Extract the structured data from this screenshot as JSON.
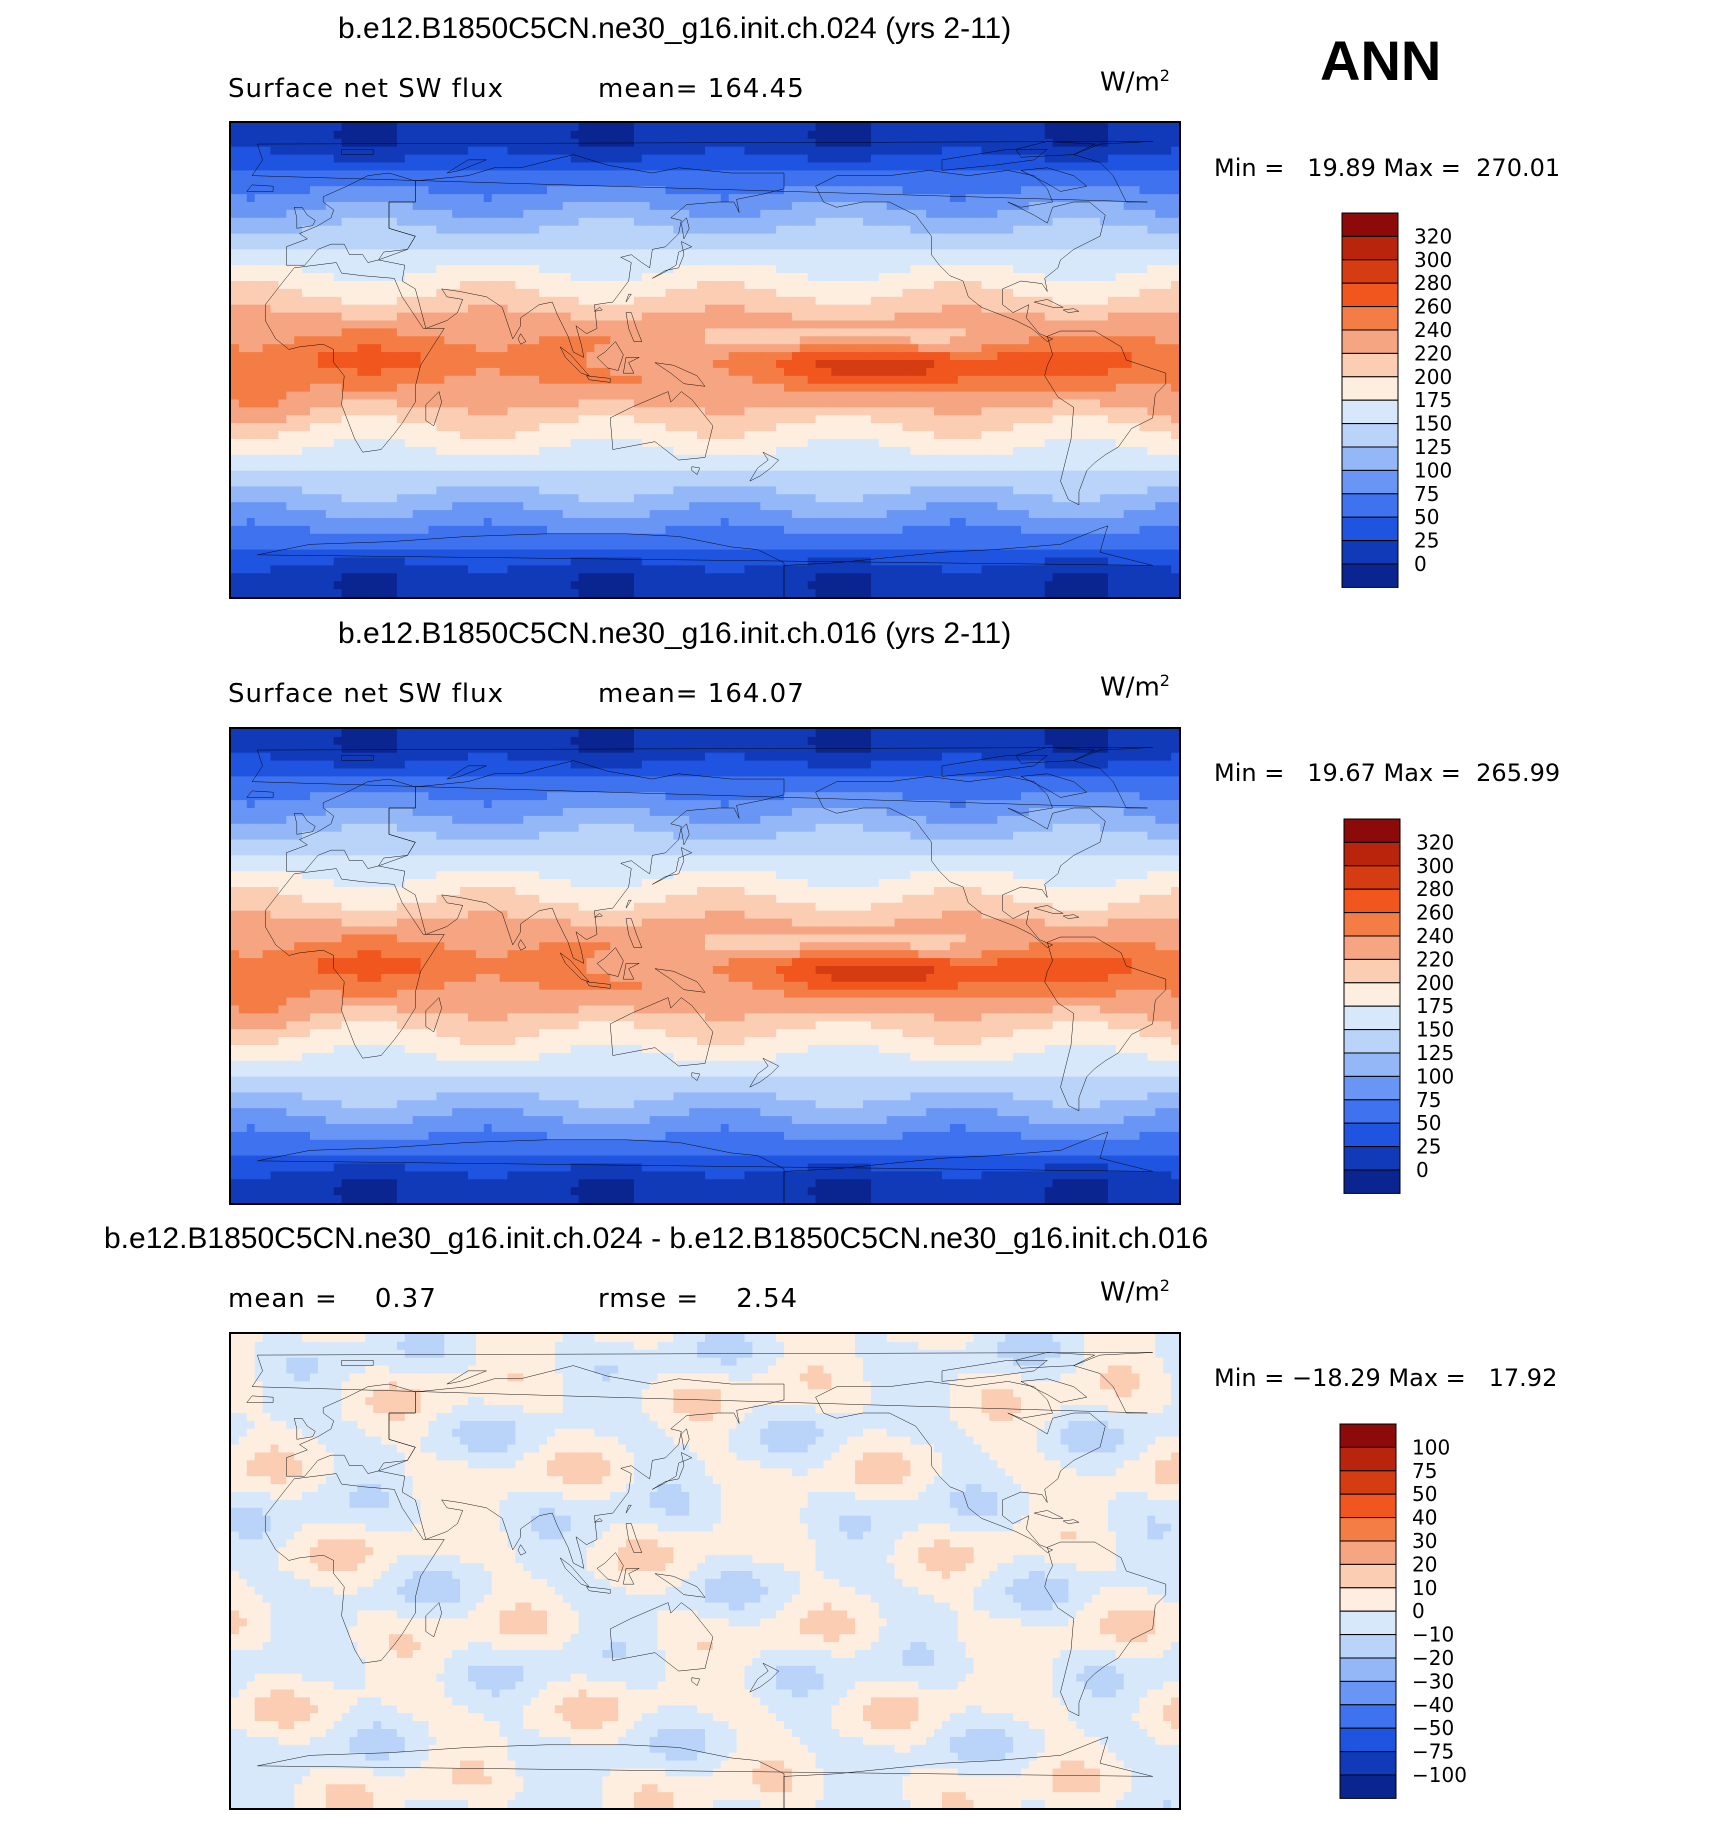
{
  "season": "ANN",
  "panels": [
    {
      "title": "b.e12.B1850C5CN.ne30_g16.init.ch.024 (yrs 2-11)",
      "left_label": "Surface net SW flux",
      "center_label": "mean= 164.45",
      "units": "W/m",
      "units_sup": "2",
      "minmax": "Min =   19.89 Max =  270.01",
      "colorbar": {
        "labels": [
          "320",
          "300",
          "280",
          "260",
          "240",
          "220",
          "200",
          "175",
          "150",
          "125",
          "100",
          "75",
          "50",
          "25",
          "0"
        ],
        "colors": [
          "#8c0a0a",
          "#b8250c",
          "#d63c12",
          "#f0561e",
          "#f47c45",
          "#f6a582",
          "#fbcdb3",
          "#fdeee0",
          "#d8e8fb",
          "#b9d3f9",
          "#93b7f7",
          "#6996f4",
          "#3f72ef",
          "#1f54e0",
          "#103ab8",
          "#0a2590"
        ]
      },
      "field": "mean"
    },
    {
      "title": "b.e12.B1850C5CN.ne30_g16.init.ch.016 (yrs 2-11)",
      "left_label": "Surface net SW flux",
      "center_label": "mean= 164.07",
      "units": "W/m",
      "units_sup": "2",
      "minmax": "Min =   19.67 Max =  265.99",
      "colorbar": {
        "labels": [
          "320",
          "300",
          "280",
          "260",
          "240",
          "220",
          "200",
          "175",
          "150",
          "125",
          "100",
          "75",
          "50",
          "25",
          "0"
        ],
        "colors": [
          "#8c0a0a",
          "#b8250c",
          "#d63c12",
          "#f0561e",
          "#f47c45",
          "#f6a582",
          "#fbcdb3",
          "#fdeee0",
          "#d8e8fb",
          "#b9d3f9",
          "#93b7f7",
          "#6996f4",
          "#3f72ef",
          "#1f54e0",
          "#103ab8",
          "#0a2590"
        ]
      },
      "field": "mean"
    },
    {
      "title": "b.e12.B1850C5CN.ne30_g16.init.ch.024 - b.e12.B1850C5CN.ne30_g16.init.ch.016",
      "left_label": "mean =    0.37",
      "center_label": "rmse =    2.54",
      "units": "W/m",
      "units_sup": "2",
      "minmax": "Min = −18.29 Max =   17.92",
      "colorbar": {
        "labels": [
          "100",
          "75",
          "50",
          "40",
          "30",
          "20",
          "10",
          "0",
          "−10",
          "−20",
          "−30",
          "−40",
          "−50",
          "−75",
          "−100"
        ],
        "colors": [
          "#8c0a0a",
          "#b8250c",
          "#d63c12",
          "#f0561e",
          "#f47c45",
          "#f6a582",
          "#fbcdb3",
          "#fdeee0",
          "#d8e8fb",
          "#b9d3f9",
          "#93b7f7",
          "#6996f4",
          "#3f72ef",
          "#1f54e0",
          "#103ab8",
          "#0a2590"
        ]
      },
      "field": "diff"
    }
  ]
}
